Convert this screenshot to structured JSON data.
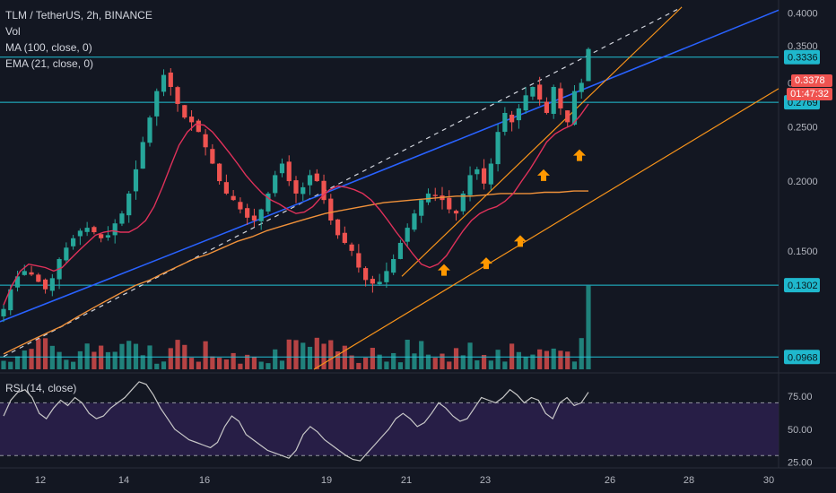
{
  "header": {
    "symbol_line": "TLM / TetherUS, 2h, BINANCE",
    "vol_label": "Vol",
    "ma_label": "MA (100, close, 0)",
    "ema_label": "EMA (21, close, 0)",
    "rsi_label": "RSI (14, close)"
  },
  "price_scale": {
    "ticks": [
      "0.4000",
      "0.3500",
      "0.3000",
      "0.2500",
      "0.2000",
      "0.1500"
    ],
    "current_price": "0.3378",
    "countdown": "01:47:32",
    "hlines": [
      {
        "label": "0.3336"
      },
      {
        "label": "0.2769"
      },
      {
        "label": "0.1302"
      },
      {
        "label": "0.0968"
      }
    ],
    "hidden_tick": "0.1000"
  },
  "rsi_scale": {
    "ticks": [
      "75.00",
      "50.00",
      "25.00"
    ]
  },
  "time_axis": {
    "labels": [
      "12",
      "14",
      "16",
      "19",
      "21",
      "23",
      "26",
      "28",
      "30"
    ]
  },
  "colors": {
    "background": "#131722",
    "up": "#26a69a",
    "down": "#ef5350",
    "ma": "#f0913a",
    "ema": "#e0315a",
    "trend_blue": "#2962ff",
    "trend_orange": "#f7931a",
    "hline": "#22c1d6",
    "rsi": "#c8c8c8",
    "rsi_band": "#2a1f4a",
    "arrow": "#ff9800",
    "price_label": "#ef5350",
    "hline_label": "#1fb8cd"
  },
  "chart_data": {
    "type": "candlestick",
    "title": "TLM / TetherUS, 2h, BINANCE",
    "x": [
      "12",
      "14",
      "16",
      "19",
      "21",
      "23",
      "26",
      "28",
      "30"
    ],
    "ylim": [
      0.092,
      0.41
    ],
    "rsi_ylim": [
      22,
      90
    ],
    "rsi_levels": [
      70,
      30
    ],
    "closes": [
      0.118,
      0.128,
      0.135,
      0.138,
      0.136,
      0.132,
      0.128,
      0.134,
      0.145,
      0.152,
      0.158,
      0.163,
      0.165,
      0.162,
      0.158,
      0.16,
      0.168,
      0.175,
      0.19,
      0.21,
      0.235,
      0.26,
      0.29,
      0.31,
      0.295,
      0.275,
      0.26,
      0.255,
      0.245,
      0.23,
      0.215,
      0.2,
      0.19,
      0.185,
      0.178,
      0.172,
      0.17,
      0.178,
      0.19,
      0.205,
      0.215,
      0.2,
      0.19,
      0.195,
      0.205,
      0.2,
      0.185,
      0.17,
      0.16,
      0.155,
      0.15,
      0.14,
      0.133,
      0.131,
      0.132,
      0.138,
      0.145,
      0.155,
      0.165,
      0.175,
      0.185,
      0.19,
      0.188,
      0.185,
      0.178,
      0.175,
      0.19,
      0.205,
      0.21,
      0.198,
      0.215,
      0.245,
      0.265,
      0.255,
      0.27,
      0.285,
      0.295,
      0.28,
      0.265,
      0.295,
      0.27,
      0.255,
      0.29,
      0.3,
      0.345
    ],
    "ma100": [
      0.098,
      0.101,
      0.104,
      0.107,
      0.11,
      0.114,
      0.118,
      0.122,
      0.126,
      0.13,
      0.133,
      0.137,
      0.141,
      0.145,
      0.148,
      0.152,
      0.156,
      0.159,
      0.163,
      0.166,
      0.169,
      0.172,
      0.175,
      0.177,
      0.179,
      0.181,
      0.183,
      0.184,
      0.185,
      0.186,
      0.187,
      0.188,
      0.188,
      0.189,
      0.19,
      0.19,
      0.19,
      0.191,
      0.191,
      0.192,
      0.192
    ],
    "ema21": [
      0.12,
      0.13,
      0.138,
      0.142,
      0.141,
      0.14,
      0.138,
      0.14,
      0.145,
      0.15,
      0.155,
      0.16,
      0.162,
      0.163,
      0.162,
      0.162,
      0.165,
      0.17,
      0.18,
      0.195,
      0.213,
      0.232,
      0.245,
      0.253,
      0.252,
      0.245,
      0.235,
      0.225,
      0.215,
      0.205,
      0.197,
      0.19,
      0.185,
      0.182,
      0.178,
      0.175,
      0.176,
      0.18,
      0.187,
      0.193,
      0.196,
      0.195,
      0.193,
      0.19,
      0.185,
      0.178,
      0.17,
      0.162,
      0.155,
      0.148,
      0.142,
      0.14,
      0.142,
      0.147,
      0.155,
      0.163,
      0.17,
      0.175,
      0.178,
      0.18,
      0.184,
      0.19,
      0.2,
      0.21,
      0.222,
      0.235,
      0.243,
      0.248,
      0.252,
      0.262,
      0.275
    ],
    "rsi": [
      60,
      72,
      78,
      80,
      74,
      62,
      58,
      66,
      72,
      68,
      74,
      70,
      62,
      58,
      60,
      66,
      70,
      74,
      80,
      86,
      84,
      76,
      66,
      58,
      50,
      46,
      42,
      40,
      38,
      36,
      40,
      52,
      60,
      56,
      46,
      42,
      38,
      34,
      32,
      30,
      28,
      34,
      46,
      52,
      48,
      42,
      38,
      34,
      30,
      27,
      26,
      32,
      38,
      44,
      50,
      58,
      62,
      58,
      52,
      55,
      62,
      70,
      66,
      60,
      56,
      58,
      66,
      74,
      72,
      70,
      74,
      80,
      76,
      70,
      74,
      72,
      62,
      58,
      70,
      74,
      68,
      70,
      78
    ],
    "annotations": {
      "levels": [
        0.3336,
        0.2769,
        0.1302,
        0.0968
      ],
      "up_arrows": 6
    }
  }
}
